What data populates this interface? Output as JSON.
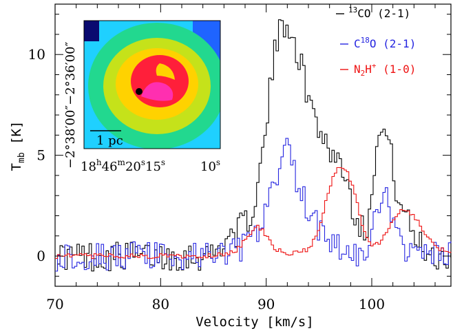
{
  "chart_data": {
    "type": "line",
    "title": "",
    "xlabel": "Velocity [km/s]",
    "ylabel_main": "T",
    "ylabel_sub": "mb",
    "ylabel_unit": " [K]",
    "xlim": [
      70,
      107.5
    ],
    "ylim": [
      -1.5,
      12.5
    ],
    "xticks": [
      70,
      80,
      90,
      100
    ],
    "yticks": [
      0,
      5,
      10
    ],
    "legend_position": "top-right",
    "series": [
      {
        "name": "13CO (2-1)",
        "legend_sup": "13",
        "legend_base": "CO (2-1)",
        "color": "#000000",
        "x": [
          70,
          72,
          74,
          76,
          78,
          80,
          82,
          84,
          85,
          86,
          87,
          88,
          89,
          90,
          90.5,
          91,
          91.5,
          92,
          92.5,
          93,
          93.5,
          94,
          95,
          96,
          97,
          97.5,
          98,
          99,
          99.5,
          100,
          100.5,
          101,
          101.5,
          102,
          103,
          104,
          105,
          106,
          107.5
        ],
        "y": [
          0,
          0,
          0,
          0,
          0,
          0,
          0,
          0,
          0.2,
          0.8,
          1.2,
          1.6,
          3.0,
          6.8,
          9.5,
          10.8,
          11.5,
          11.7,
          10.8,
          9.8,
          8.8,
          7.6,
          6.3,
          5.2,
          4.6,
          4.0,
          2.6,
          1.3,
          1.6,
          4.2,
          5.8,
          6.2,
          5.8,
          3.8,
          2.0,
          0.9,
          0.3,
          0,
          0
        ]
      },
      {
        "name": "C18O (2-1)",
        "legend_sup": "18",
        "legend_pre": "C",
        "legend_base": "O (2-1)",
        "color": "#2424e0",
        "x": [
          70,
          72,
          74,
          76,
          78,
          80,
          82,
          84,
          85,
          86,
          87,
          88,
          89,
          90,
          90.5,
          91,
          91.5,
          92,
          92.5,
          93,
          93.5,
          94,
          95,
          96,
          97,
          97.5,
          98,
          99,
          99.5,
          100,
          100.5,
          101,
          101.5,
          102,
          103,
          104,
          105,
          106,
          107.5
        ],
        "y": [
          0,
          0,
          0,
          0,
          0,
          0,
          0,
          0,
          0,
          0.2,
          0.4,
          0.5,
          1.0,
          2.3,
          3.2,
          4.2,
          5.0,
          5.5,
          4.4,
          3.5,
          2.8,
          2.2,
          1.3,
          0.8,
          0.4,
          0.2,
          0,
          0,
          0.2,
          1.3,
          2.2,
          2.8,
          2.6,
          1.4,
          0.5,
          0.1,
          0,
          0,
          0
        ]
      },
      {
        "name": "N2H+ (1-0)",
        "legend_pre": "N",
        "legend_sub": "2",
        "legend_mid": "H",
        "legend_sup": "+",
        "legend_base": " (1-0)",
        "color": "#ee1111",
        "x": [
          70,
          76,
          80,
          84,
          86,
          87,
          88,
          88.5,
          89,
          89.5,
          90,
          90.5,
          91,
          92,
          93,
          94,
          94.5,
          95,
          95.5,
          96,
          96.5,
          97,
          97.5,
          98,
          98.5,
          99,
          99.5,
          100,
          100.5,
          101,
          101.5,
          102,
          102.5,
          103,
          103.5,
          104,
          105,
          106,
          107.5
        ],
        "y": [
          0,
          0,
          0,
          0,
          0.1,
          0.3,
          0.8,
          1.2,
          1.5,
          1.3,
          0.9,
          0.5,
          0.3,
          0.1,
          0.15,
          0.4,
          0.9,
          1.6,
          2.6,
          3.6,
          4.2,
          4.4,
          4.2,
          3.6,
          2.6,
          1.5,
          0.8,
          0.5,
          0.6,
          0.9,
          1.4,
          1.9,
          2.2,
          2.3,
          2.2,
          1.9,
          1.0,
          0.4,
          0.2
        ]
      }
    ]
  },
  "inset": {
    "scale_bar_label": "1 pc",
    "ra_label_hours": "18",
    "ra_label_minutes": "46",
    "ra_label_seconds_a": "20",
    "ra_label_seconds_b": "15",
    "ra_label_seconds_c": "10",
    "dec_label_a": "−2°38′00″",
    "dec_label_b": "−2°36′00″",
    "colormap_colors": [
      "#0a0a70",
      "#1f48ff",
      "#1fd0ff",
      "#22d88f",
      "#3fe03f",
      "#c5e21a",
      "#ffd200",
      "#ff6a00",
      "#ff1f3a",
      "#ff2fb0",
      "#ffaaff"
    ]
  }
}
